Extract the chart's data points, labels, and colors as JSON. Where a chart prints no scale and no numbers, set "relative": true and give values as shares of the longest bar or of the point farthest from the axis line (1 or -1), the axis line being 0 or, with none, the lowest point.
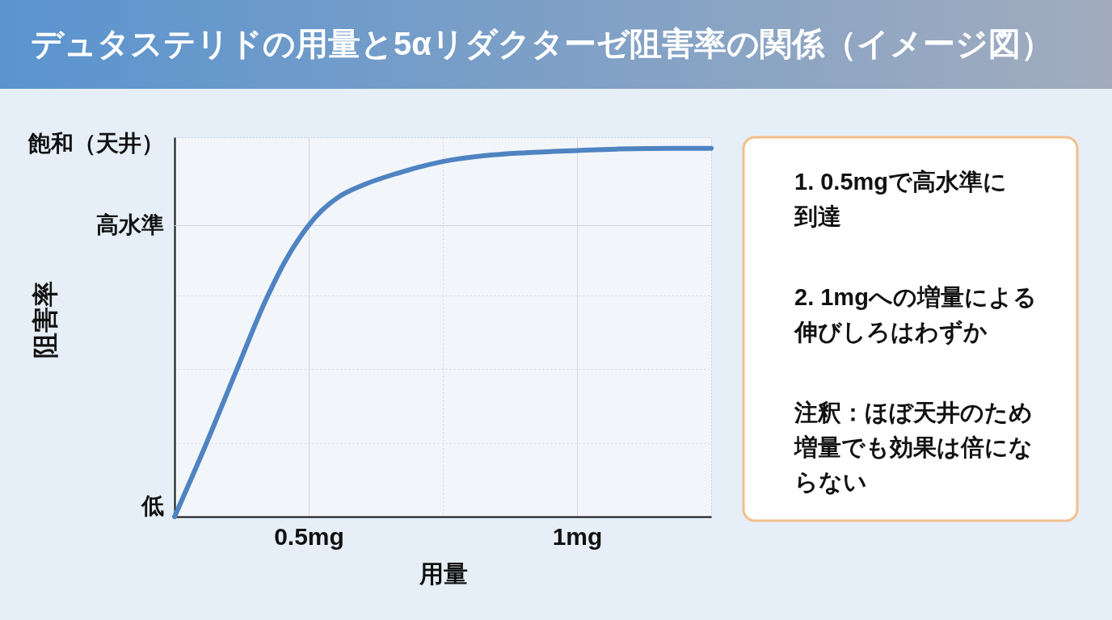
{
  "chart_data": [
    {
      "type": "line",
      "title": "デュタステリドの用量と5αリダクターゼ阻害率の関係（イメージ図）",
      "xlabel": "用量",
      "ylabel": "阻害率",
      "relative": true,
      "x": [
        0.25,
        0.307,
        0.365,
        0.421,
        0.457,
        0.483,
        0.5,
        0.523,
        0.555,
        0.601,
        0.667,
        0.75,
        0.828,
        0.904,
        1.0,
        1.079,
        1.18,
        1.25
      ],
      "values": [
        0,
        0.191,
        0.396,
        0.591,
        0.696,
        0.757,
        0.791,
        0.829,
        0.867,
        0.9,
        0.933,
        0.964,
        0.98,
        0.988,
        0.994,
        0.998,
        1.0,
        1.0
      ],
      "color": "#4f83c2",
      "xlim": [
        0.25,
        1.25
      ],
      "xticks": [
        {
          "value": 0.5,
          "label": "0.5mg"
        },
        {
          "value": 0.75,
          "label": null
        },
        {
          "value": 1,
          "label": "1mg"
        }
      ],
      "ref_lines": [
        {
          "axis": "y",
          "value": 0.79,
          "label": "高水準"
        }
      ],
      "annotations": [
        "飽和（天井）",
        "低"
      ],
      "grid": true
    },
    {
      "type": "other",
      "annotations": [
        "1. 0.5mgで高水準に到達",
        "2. 1mgへの増量による伸びしろはわずか",
        "注釈：ほぼ天井のため増量でも効果は倍にならない"
      ]
    }
  ]
}
